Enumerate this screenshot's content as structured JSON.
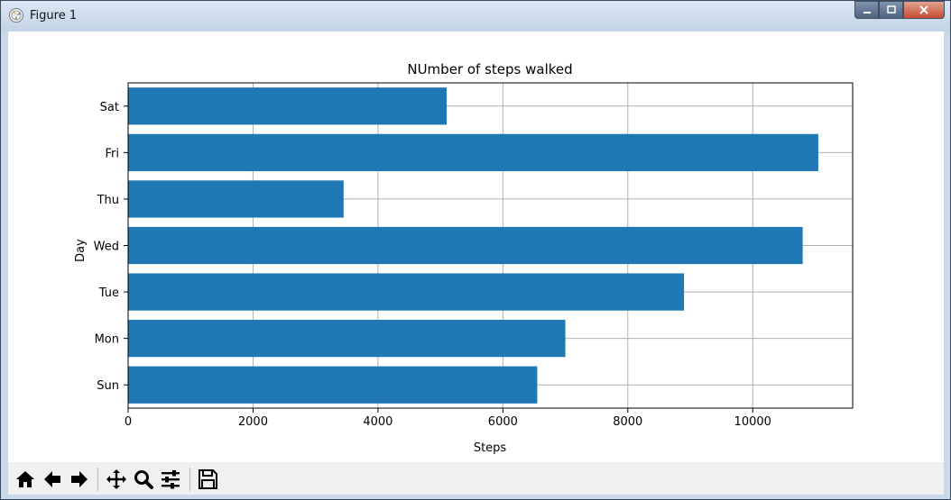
{
  "window": {
    "title": "Figure 1"
  },
  "toolbar": {
    "buttons": [
      {
        "icon": "home-icon"
      },
      {
        "icon": "back-arrow-icon"
      },
      {
        "icon": "forward-arrow-icon"
      },
      {
        "icon": "pan-icon"
      },
      {
        "icon": "zoom-icon"
      },
      {
        "icon": "subplots-icon"
      },
      {
        "icon": "save-icon"
      }
    ]
  },
  "chart_data": {
    "type": "bar",
    "orientation": "horizontal",
    "title": "NUmber of steps walked",
    "xlabel": "Steps",
    "ylabel": "Day",
    "categories": [
      "Sun",
      "Mon",
      "Tue",
      "Wed",
      "Thu",
      "Fri",
      "Sat"
    ],
    "values": [
      6550,
      7000,
      8900,
      10800,
      3450,
      11050,
      5100
    ],
    "xlim": [
      0,
      11600
    ],
    "xticks": [
      "0",
      "2000",
      "4000",
      "6000",
      "8000",
      "10000"
    ],
    "grid": true,
    "bar_color": "#1f77b4"
  }
}
